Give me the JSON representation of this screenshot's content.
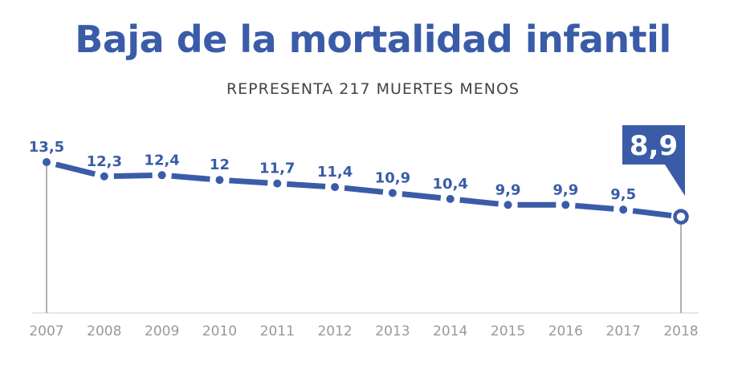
{
  "chart_data": {
    "type": "line",
    "title": "Baja de la mortalidad infantil",
    "subtitle": "REPRESENTA 217 MUERTES MENOS",
    "categories": [
      "2007",
      "2008",
      "2009",
      "2010",
      "2011",
      "2012",
      "2013",
      "2014",
      "2015",
      "2016",
      "2017",
      "2018"
    ],
    "values": [
      13.5,
      12.3,
      12.4,
      12,
      11.7,
      11.4,
      10.9,
      10.4,
      9.9,
      9.9,
      9.5,
      8.9
    ],
    "data_labels": [
      "13,5",
      "12,3",
      "12,4",
      "12",
      "11,7",
      "11,4",
      "10,9",
      "10,4",
      "9,9",
      "9,9",
      "9,5",
      "8,9"
    ],
    "highlight": {
      "category": "2018",
      "label": "8,9"
    },
    "grid": false,
    "legend": "none",
    "colors": {
      "line": "#3a5ca8",
      "axis": "#999999",
      "tick_text": "#999999"
    }
  }
}
